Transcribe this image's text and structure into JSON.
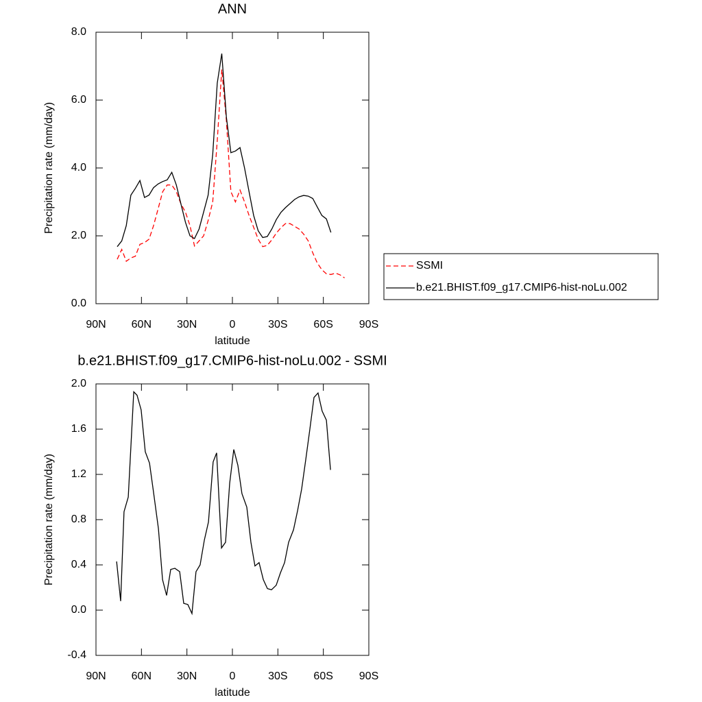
{
  "chart_data": [
    {
      "type": "line",
      "title": "ANN",
      "xlabel": "latitude",
      "ylabel": "Precipitation rate (mm/day)",
      "x": [
        76,
        73,
        70,
        67,
        64,
        61,
        58,
        55,
        52,
        49,
        46,
        43,
        40,
        37,
        34,
        31,
        28,
        25,
        22,
        19,
        16,
        13,
        10,
        7,
        4,
        1,
        -2,
        -5,
        -8,
        -11,
        -14,
        -17,
        -20,
        -23,
        -26,
        -29,
        -32,
        -35,
        -38,
        -41,
        -44,
        -47,
        -50,
        -53,
        -56,
        -59,
        -62,
        -65,
        -68,
        -71,
        -74
      ],
      "series": [
        {
          "name": "SSMI",
          "color": "#ff0000",
          "dashed": true,
          "values": [
            1.31,
            1.6,
            1.25,
            1.35,
            1.4,
            1.75,
            1.8,
            1.9,
            2.3,
            2.8,
            3.3,
            3.5,
            3.5,
            3.3,
            2.95,
            2.7,
            2.3,
            1.7,
            1.85,
            2.0,
            2.45,
            3.0,
            4.8,
            6.9,
            5.4,
            3.3,
            3.0,
            3.35,
            3.0,
            2.6,
            2.25,
            1.9,
            1.68,
            1.72,
            1.88,
            2.08,
            2.24,
            2.36,
            2.36,
            2.28,
            2.2,
            2.05,
            1.85,
            1.5,
            1.2,
            1.0,
            0.88,
            0.86,
            0.9,
            0.85,
            0.76
          ]
        },
        {
          "name": "b.e21.BHIST.f09_g17.CMIP6-hist-noLu.002",
          "color": "#000000",
          "dashed": false,
          "values": [
            1.68,
            1.85,
            2.3,
            3.2,
            3.4,
            3.63,
            3.13,
            3.2,
            3.42,
            3.53,
            3.6,
            3.65,
            3.87,
            3.5,
            2.95,
            2.4,
            2.0,
            1.92,
            2.2,
            2.7,
            3.2,
            4.4,
            6.5,
            7.37,
            5.5,
            4.45,
            4.5,
            4.6,
            4.0,
            3.3,
            2.6,
            2.15,
            1.95,
            1.98,
            2.2,
            2.48,
            2.69,
            2.83,
            2.95,
            3.07,
            3.15,
            3.19,
            3.17,
            3.1,
            2.85,
            2.6,
            2.5,
            2.1,
            null,
            null,
            null
          ]
        }
      ],
      "xlim": [
        90,
        -90
      ],
      "xticks": [
        {
          "value": 90,
          "label": "90N"
        },
        {
          "value": 60,
          "label": "60N"
        },
        {
          "value": 30,
          "label": "30N"
        },
        0,
        {
          "value": -30,
          "label": "30S"
        },
        {
          "value": -60,
          "label": "60S"
        },
        {
          "value": -90,
          "label": "90S"
        }
      ],
      "ylim": [
        0,
        8
      ],
      "yticks": [
        {
          "value": 0,
          "label": "0.0"
        },
        {
          "value": 2,
          "label": "2.0"
        },
        {
          "value": 4,
          "label": "4.0"
        },
        {
          "value": 6,
          "label": "6.0"
        },
        {
          "value": 8,
          "label": "8.0"
        }
      ],
      "legend": "right"
    },
    {
      "type": "line",
      "title": "b.e21.BHIST.f09_g17.CMIP6-hist-noLu.002 - SSMI",
      "xlabel": "latitude",
      "ylabel": "Precipitation rate (mm/day)",
      "x": [
        76.4,
        73.7,
        71.5,
        68.7,
        65.1,
        62.9,
        60.2,
        57.5,
        54.7,
        52.0,
        48.8,
        46.1,
        43.4,
        40.7,
        38.0,
        34.8,
        32.1,
        29.4,
        26.7,
        24.0,
        21.3,
        18.5,
        15.8,
        12.7,
        10.4,
        7.2,
        4.5,
        1.8,
        -0.9,
        -3.6,
        -6.3,
        -9.5,
        -12.2,
        -14.9,
        -17.6,
        -20.4,
        -23.1,
        -25.8,
        -28.9,
        -31.7,
        -34.4,
        -37.1,
        -40.3,
        -43.0,
        -45.7,
        -48.4,
        -51.1,
        -53.8,
        -56.5,
        -59.2,
        -62.0,
        -64.7
      ],
      "series": [
        {
          "color": "#000000",
          "dashed": false,
          "values": [
            0.43,
            0.08,
            0.87,
            1.0,
            1.93,
            1.9,
            1.77,
            1.4,
            1.3,
            1.04,
            0.72,
            0.27,
            0.13,
            0.36,
            0.37,
            0.34,
            0.06,
            0.05,
            -0.03,
            0.34,
            0.4,
            0.62,
            0.78,
            1.31,
            1.39,
            0.55,
            0.6,
            1.12,
            1.42,
            1.28,
            1.03,
            0.91,
            0.6,
            0.39,
            0.42,
            0.27,
            0.19,
            0.18,
            0.22,
            0.33,
            0.42,
            0.6,
            0.71,
            0.88,
            1.07,
            1.33,
            1.6,
            1.88,
            1.92,
            1.76,
            1.68,
            1.24
          ]
        }
      ],
      "xlim": [
        90,
        -90
      ],
      "xticks": [
        {
          "value": 90,
          "label": "90N"
        },
        {
          "value": 60,
          "label": "60N"
        },
        {
          "value": 30,
          "label": "30N"
        },
        0,
        {
          "value": -30,
          "label": "30S"
        },
        {
          "value": -60,
          "label": "60S"
        },
        {
          "value": -90,
          "label": "90S"
        }
      ],
      "ylim": [
        -0.4,
        2
      ],
      "yticks": [
        {
          "value": -0.4,
          "label": "-0.4"
        },
        {
          "value": 0,
          "label": "0.0"
        },
        {
          "value": 0.4,
          "label": "0.4"
        },
        {
          "value": 0.8,
          "label": "0.8"
        },
        {
          "value": 1.2,
          "label": "1.2"
        },
        {
          "value": 1.6,
          "label": "1.6"
        },
        {
          "value": 2,
          "label": "2.0"
        }
      ]
    }
  ]
}
